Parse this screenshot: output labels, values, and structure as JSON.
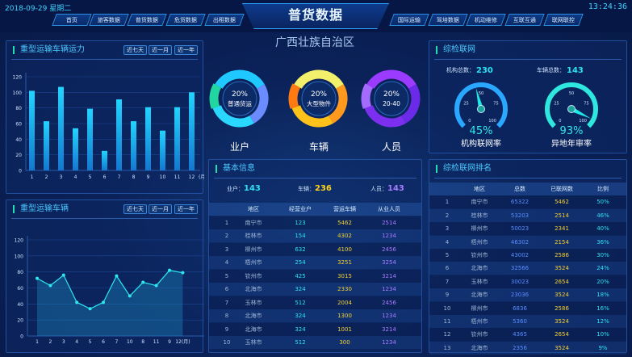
{
  "header": {
    "date": "2018-09-29",
    "weekday": "星期二",
    "time": "13:24:36",
    "title": "普货数据",
    "nav_left": [
      "首页",
      "旅客数据",
      "普货数据",
      "危货数据",
      "出租数据"
    ],
    "nav_right": [
      "国际运输",
      "驾培数据",
      "机动维修",
      "互联互通",
      "联网联控"
    ]
  },
  "time_filters": [
    "近七天",
    "近一月",
    "近一年"
  ],
  "capacity": {
    "title": "重型运输车辆运力"
  },
  "vehicles": {
    "title": "重型运输车辆"
  },
  "region": "广西壮族自治区",
  "donuts": [
    {
      "percent": "20%",
      "label": "普通货运",
      "caption": "业户",
      "colors": [
        "#1fc8ff",
        "#6b8cff",
        "#2ad8ff",
        "#21d6a0"
      ]
    },
    {
      "percent": "20%",
      "label": "大型物件",
      "caption": "车辆",
      "colors": [
        "#f2ef6a",
        "#ff9a1f",
        "#ffc21a",
        "#ff7a10"
      ]
    },
    {
      "percent": "20%",
      "label": "20-40",
      "caption": "人员",
      "colors": [
        "#9b3bff",
        "#6a2ae8",
        "#7d2ff0",
        "#a46bff"
      ]
    }
  ],
  "basic": {
    "title": "基本信息",
    "summary": [
      {
        "label": "业户：",
        "value": "143",
        "color": "#2ee0f0"
      },
      {
        "label": "车辆：",
        "value": "236",
        "color": "#ffd21a"
      },
      {
        "label": "人员：",
        "value": "143",
        "color": "#a77bff"
      }
    ],
    "columns": [
      "",
      "地区",
      "经营业户",
      "营运车辆",
      "从业人员"
    ],
    "rows": [
      [
        "1",
        "南宁市",
        "123",
        "5462",
        "2514"
      ],
      [
        "2",
        "桂林市",
        "154",
        "4302",
        "1234"
      ],
      [
        "3",
        "柳州市",
        "632",
        "4100",
        "2456"
      ],
      [
        "4",
        "梧州市",
        "254",
        "3251",
        "3254"
      ],
      [
        "5",
        "钦州市",
        "425",
        "3015",
        "3214"
      ],
      [
        "6",
        "北海市",
        "324",
        "2330",
        "1234"
      ],
      [
        "7",
        "玉林市",
        "512",
        "2004",
        "2456"
      ],
      [
        "8",
        "北海市",
        "324",
        "1300",
        "1234"
      ],
      [
        "9",
        "北海市",
        "324",
        "1001",
        "3214"
      ],
      [
        "10",
        "玉林市",
        "512",
        "300",
        "1234"
      ]
    ]
  },
  "network": {
    "title": "综检联网",
    "stats": [
      {
        "label": "机构总数：",
        "value": "230"
      },
      {
        "label": "车辆总数：",
        "value": "143"
      }
    ],
    "gauges": [
      {
        "value": 45,
        "text": "45%",
        "label": "机构联网率"
      },
      {
        "value": 93,
        "text": "93%",
        "label": "异地年审率"
      }
    ],
    "ticks": [
      "0",
      "25",
      "50",
      "75",
      "100"
    ]
  },
  "ranking": {
    "title": "综检联网排名",
    "columns": [
      "",
      "地区",
      "总数",
      "已联网数",
      "比例"
    ],
    "rows": [
      [
        "1",
        "南宁市",
        "65322",
        "5462",
        "50%"
      ],
      [
        "2",
        "桂林市",
        "53203",
        "2514",
        "46%"
      ],
      [
        "3",
        "柳州市",
        "50023",
        "2341",
        "40%"
      ],
      [
        "4",
        "梧州市",
        "46302",
        "2154",
        "36%"
      ],
      [
        "5",
        "钦州市",
        "43002",
        "2586",
        "30%"
      ],
      [
        "6",
        "北海市",
        "32566",
        "3524",
        "24%"
      ],
      [
        "7",
        "玉林市",
        "30023",
        "2654",
        "20%"
      ],
      [
        "9",
        "北海市",
        "23036",
        "3524",
        "18%"
      ],
      [
        "10",
        "柳州市",
        "6836",
        "2586",
        "16%"
      ],
      [
        "11",
        "梧州市",
        "5360",
        "3524",
        "12%"
      ],
      [
        "12",
        "钦州市",
        "4365",
        "2654",
        "10%"
      ],
      [
        "13",
        "北海市",
        "2356",
        "3524",
        "9%"
      ]
    ]
  },
  "chart_data": [
    {
      "type": "bar",
      "title": "重型运输车辆运力",
      "categories": [
        "1",
        "2",
        "3",
        "4",
        "5",
        "6",
        "7",
        "8",
        "9",
        "10",
        "11",
        "12"
      ],
      "x_unit": "(月)",
      "values": [
        102,
        63,
        107,
        54,
        79,
        25,
        91,
        63,
        81,
        51,
        81,
        100
      ],
      "ylim": [
        0,
        120
      ],
      "yticks": [
        0,
        20,
        40,
        60,
        80,
        100,
        120
      ],
      "grid": true,
      "color": "#1fb8f0"
    },
    {
      "type": "area",
      "title": "重型运输车辆",
      "categories": [
        "1",
        "2",
        "3",
        "4",
        "5",
        "6",
        "7",
        "10",
        "8",
        "11",
        "9",
        "12"
      ],
      "x_unit": "(月)",
      "values": [
        72,
        63,
        76,
        42,
        34,
        42,
        75,
        50,
        67,
        63,
        82,
        79
      ],
      "ylim": [
        0,
        120
      ],
      "yticks": [
        0,
        20,
        40,
        60,
        80,
        100,
        120
      ],
      "grid": true,
      "color": "#2ee8f0"
    }
  ]
}
